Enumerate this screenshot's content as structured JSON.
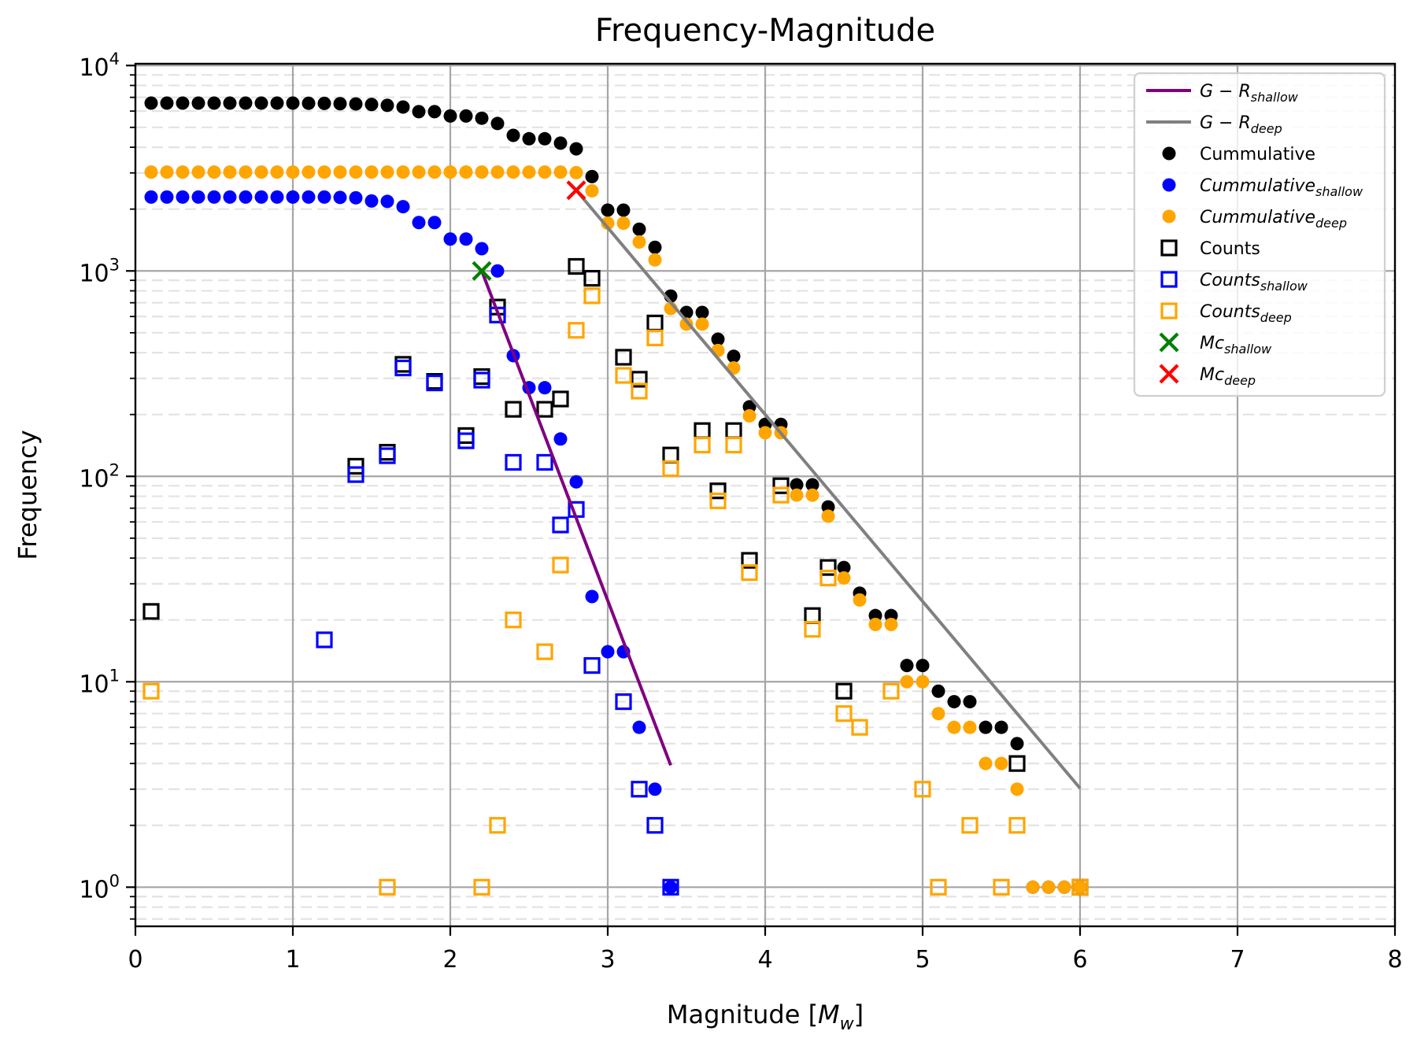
{
  "chart_data": {
    "type": "scatter",
    "title": "Frequency-Magnitude",
    "xlabel": "Magnitude [M_w]",
    "xlabel_main": "Magnitude [",
    "xlabel_math": "M",
    "xlabel_sub": "w",
    "xlabel_end": "]",
    "ylabel": "Frequency",
    "xlim": [
      0,
      8
    ],
    "ylim": [
      0.645,
      10200
    ],
    "yscale": "log",
    "grid": true,
    "x_ticks": [
      "0",
      "1",
      "2",
      "3",
      "4",
      "5",
      "6",
      "7",
      "8"
    ],
    "y_ticks": [
      {
        "base": "10",
        "exp": "0",
        "value": 1
      },
      {
        "base": "10",
        "exp": "1",
        "value": 10
      },
      {
        "base": "10",
        "exp": "2",
        "value": 100
      },
      {
        "base": "10",
        "exp": "3",
        "value": 1000
      },
      {
        "base": "10",
        "exp": "4",
        "value": 10000
      }
    ],
    "legend_position": "top-right",
    "colors": {
      "gr_shallow": "#800080",
      "gr_deep": "#808080",
      "cumulative": "#000000",
      "cumulative_shallow": "#0000ff",
      "cumulative_deep": "#ffa500",
      "counts": "#000000",
      "counts_shallow": "#0000ff",
      "counts_deep": "#ffa500",
      "mc_shallow": "#008000",
      "mc_deep": "#ff0000"
    },
    "legend": [
      {
        "key": "gr_shallow",
        "main": "G − R",
        "sub": "shallow",
        "marker": "line",
        "italic": true
      },
      {
        "key": "gr_deep",
        "main": "G − R",
        "sub": "deep",
        "marker": "line",
        "italic": true
      },
      {
        "key": "cumulative",
        "main": "Cummulative",
        "sub": "",
        "marker": "dot",
        "italic": false
      },
      {
        "key": "cumulative_shallow",
        "main": "Cummulative",
        "sub": "shallow",
        "marker": "dot",
        "italic": true
      },
      {
        "key": "cumulative_deep",
        "main": "Cummulative",
        "sub": "deep",
        "marker": "dot",
        "italic": true
      },
      {
        "key": "counts",
        "main": "Counts",
        "sub": "",
        "marker": "square",
        "italic": false
      },
      {
        "key": "counts_shallow",
        "main": "Counts",
        "sub": "shallow",
        "marker": "square",
        "italic": true
      },
      {
        "key": "counts_deep",
        "main": "Counts",
        "sub": "deep",
        "marker": "square",
        "italic": true
      },
      {
        "key": "mc_shallow",
        "main": "Mc",
        "sub": "shallow",
        "marker": "x",
        "italic": true
      },
      {
        "key": "mc_deep",
        "main": "Mc",
        "sub": "deep",
        "marker": "x",
        "italic": true
      }
    ],
    "series": [
      {
        "name": "Cummulative",
        "key": "cumulative",
        "kind": "dot",
        "x": [
          0.1,
          0.2,
          0.3,
          0.4,
          0.5,
          0.6,
          0.7,
          0.8,
          0.9,
          1.0,
          1.1,
          1.2,
          1.3,
          1.4,
          1.5,
          1.6,
          1.7,
          1.8,
          1.9,
          2.0,
          2.1,
          2.2,
          2.3,
          2.4,
          2.5,
          2.6,
          2.7,
          2.8,
          2.9,
          3.0,
          3.1,
          3.2,
          3.3,
          3.4,
          3.5,
          3.6,
          3.7,
          3.8,
          3.9,
          4.0,
          4.1,
          4.2,
          4.3,
          4.4,
          4.5,
          4.6,
          4.7,
          4.8,
          4.9,
          5.0,
          5.1,
          5.2,
          5.3,
          5.4,
          5.5,
          5.6,
          5.7,
          5.8,
          5.9,
          6.0
        ],
        "y": [
          6560,
          6560,
          6560,
          6560,
          6560,
          6560,
          6560,
          6560,
          6560,
          6560,
          6550,
          6540,
          6520,
          6500,
          6460,
          6400,
          6280,
          5960,
          5960,
          5680,
          5680,
          5540,
          5220,
          4570,
          4400,
          4400,
          4190,
          3930,
          2880,
          1977,
          1977,
          1596,
          1303,
          754,
          628,
          628,
          465,
          384,
          218,
          179,
          179,
          91,
          91,
          71,
          36,
          27,
          21,
          21,
          12,
          12,
          9,
          8,
          8,
          6,
          6,
          5,
          1,
          1,
          1,
          1
        ]
      },
      {
        "name": "Cummulative_shallow",
        "key": "cumulative_shallow",
        "kind": "dot",
        "x": [
          0.1,
          0.2,
          0.3,
          0.4,
          0.5,
          0.6,
          0.7,
          0.8,
          0.9,
          1.0,
          1.1,
          1.2,
          1.3,
          1.4,
          1.5,
          1.6,
          1.7,
          1.8,
          1.9,
          2.0,
          2.1,
          2.2,
          2.3,
          2.4,
          2.5,
          2.6,
          2.7,
          2.8,
          2.9,
          3.0,
          3.1,
          3.2,
          3.3,
          3.4
        ],
        "y": [
          2290,
          2290,
          2290,
          2290,
          2290,
          2290,
          2290,
          2290,
          2290,
          2290,
          2290,
          2290,
          2280,
          2270,
          2190,
          2180,
          2055,
          1720,
          1720,
          1430,
          1430,
          1283,
          1000,
          387,
          270,
          270,
          152,
          94,
          26,
          14,
          14,
          6,
          3,
          1
        ]
      },
      {
        "name": "Cummulative_deep",
        "key": "cumulative_deep",
        "kind": "dot",
        "x": [
          0.1,
          0.2,
          0.3,
          0.4,
          0.5,
          0.6,
          0.7,
          0.8,
          0.9,
          1.0,
          1.1,
          1.2,
          1.3,
          1.4,
          1.5,
          1.6,
          1.7,
          1.8,
          1.9,
          2.0,
          2.1,
          2.2,
          2.3,
          2.4,
          2.5,
          2.6,
          2.7,
          2.8,
          2.9,
          3.0,
          3.1,
          3.2,
          3.3,
          3.4,
          3.5,
          3.6,
          3.7,
          3.8,
          3.9,
          4.0,
          4.1,
          4.2,
          4.3,
          4.4,
          4.5,
          4.6,
          4.7,
          4.8,
          4.9,
          5.0,
          5.1,
          5.2,
          5.3,
          5.4,
          5.5,
          5.6,
          5.7,
          5.8,
          5.9,
          6.0
        ],
        "y": [
          3030,
          3030,
          3030,
          3030,
          3030,
          3030,
          3030,
          3030,
          3030,
          3030,
          3030,
          3030,
          3030,
          3030,
          3030,
          3030,
          3030,
          3030,
          3030,
          3030,
          3030,
          3030,
          3030,
          3030,
          3030,
          3030,
          3030,
          3010,
          2455,
          1707,
          1707,
          1383,
          1131,
          656,
          551,
          551,
          410,
          337,
          197,
          163,
          163,
          81,
          81,
          64,
          32,
          25,
          19,
          19,
          10,
          10,
          7,
          6,
          6,
          4,
          4,
          3,
          1,
          1,
          1,
          1
        ]
      },
      {
        "name": "Counts",
        "key": "counts",
        "kind": "square",
        "x": [
          0.1,
          1.4,
          1.6,
          1.7,
          1.9,
          2.1,
          2.2,
          2.3,
          2.4,
          2.6,
          2.7,
          2.8,
          2.9,
          3.1,
          3.2,
          3.3,
          3.4,
          3.6,
          3.7,
          3.8,
          3.9,
          4.1,
          4.3,
          4.4,
          4.5,
          5.6,
          6.0
        ],
        "y": [
          22,
          112,
          131,
          351,
          290,
          158,
          306,
          667,
          212,
          212,
          238,
          1052,
          921,
          380,
          297,
          558,
          127,
          167,
          85,
          167,
          39,
          90,
          21,
          36,
          9,
          4,
          1
        ]
      },
      {
        "name": "Counts_shallow",
        "key": "counts_shallow",
        "kind": "square",
        "x": [
          1.2,
          1.4,
          1.6,
          1.7,
          1.9,
          2.1,
          2.2,
          2.3,
          2.4,
          2.6,
          2.7,
          2.8,
          2.9,
          3.1,
          3.2,
          3.3,
          3.4
        ],
        "y": [
          16,
          102,
          126,
          337,
          285,
          149,
          294,
          610,
          117,
          117,
          58,
          69,
          12,
          8,
          3,
          2,
          1
        ]
      },
      {
        "name": "Counts_deep",
        "key": "counts_deep",
        "kind": "square",
        "x": [
          0.1,
          1.6,
          2.2,
          2.3,
          2.4,
          2.6,
          2.7,
          2.8,
          2.9,
          3.1,
          3.2,
          3.3,
          3.4,
          3.6,
          3.7,
          3.8,
          3.9,
          4.1,
          4.3,
          4.4,
          4.5,
          4.6,
          4.8,
          5.0,
          5.1,
          5.3,
          5.5,
          5.6,
          6.0
        ],
        "y": [
          9,
          1,
          1,
          2,
          20,
          14,
          37,
          514,
          757,
          310,
          260,
          472,
          109,
          142,
          76,
          142,
          34,
          81,
          18,
          32,
          7,
          6,
          9,
          3,
          1,
          2,
          1,
          2,
          1
        ]
      }
    ],
    "lines": [
      {
        "name": "G-R_shallow",
        "key": "gr_shallow",
        "x": [
          2.2,
          3.4
        ],
        "y": [
          1000,
          3.92
        ]
      },
      {
        "name": "G-R_deep",
        "key": "gr_deep",
        "x": [
          2.8,
          6.0
        ],
        "y": [
          2470,
          3.03
        ]
      }
    ],
    "markers_x": [
      {
        "name": "Mc_shallow",
        "key": "mc_shallow",
        "x": 2.2,
        "y": 1000
      },
      {
        "name": "Mc_deep",
        "key": "mc_deep",
        "x": 2.8,
        "y": 2470
      }
    ]
  }
}
